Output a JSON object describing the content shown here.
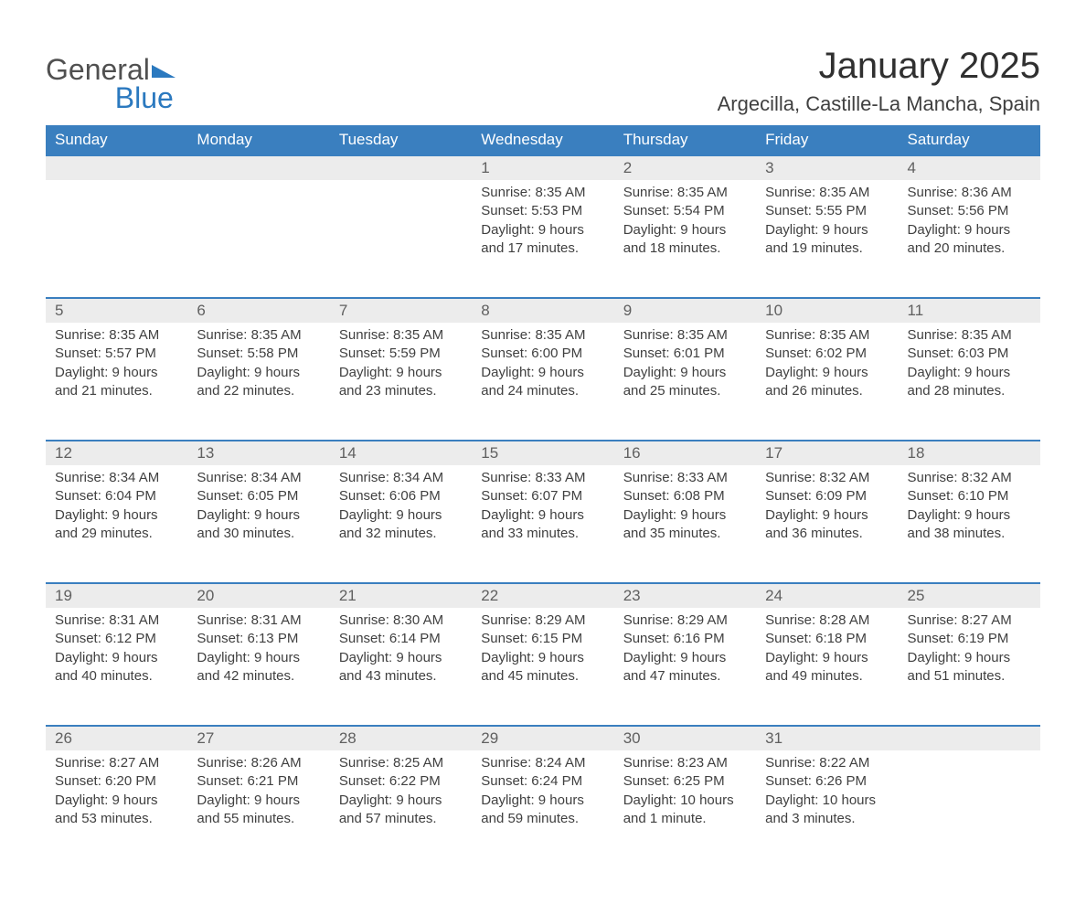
{
  "logo": {
    "general": "General",
    "blue": "Blue"
  },
  "title": "January 2025",
  "location": "Argecilla, Castille-La Mancha, Spain",
  "colors": {
    "header_bg": "#3a7fbf",
    "header_text": "#ffffff",
    "daynum_bg": "#ececec",
    "border_top": "#3a7fbf",
    "body_text": "#404040",
    "logo_blue": "#2b79bf",
    "logo_gray": "#505050"
  },
  "day_headers": [
    "Sunday",
    "Monday",
    "Tuesday",
    "Wednesday",
    "Thursday",
    "Friday",
    "Saturday"
  ],
  "weeks": [
    [
      null,
      null,
      null,
      {
        "n": "1",
        "sunrise": "Sunrise: 8:35 AM",
        "sunset": "Sunset: 5:53 PM",
        "d1": "Daylight: 9 hours",
        "d2": "and 17 minutes."
      },
      {
        "n": "2",
        "sunrise": "Sunrise: 8:35 AM",
        "sunset": "Sunset: 5:54 PM",
        "d1": "Daylight: 9 hours",
        "d2": "and 18 minutes."
      },
      {
        "n": "3",
        "sunrise": "Sunrise: 8:35 AM",
        "sunset": "Sunset: 5:55 PM",
        "d1": "Daylight: 9 hours",
        "d2": "and 19 minutes."
      },
      {
        "n": "4",
        "sunrise": "Sunrise: 8:36 AM",
        "sunset": "Sunset: 5:56 PM",
        "d1": "Daylight: 9 hours",
        "d2": "and 20 minutes."
      }
    ],
    [
      {
        "n": "5",
        "sunrise": "Sunrise: 8:35 AM",
        "sunset": "Sunset: 5:57 PM",
        "d1": "Daylight: 9 hours",
        "d2": "and 21 minutes."
      },
      {
        "n": "6",
        "sunrise": "Sunrise: 8:35 AM",
        "sunset": "Sunset: 5:58 PM",
        "d1": "Daylight: 9 hours",
        "d2": "and 22 minutes."
      },
      {
        "n": "7",
        "sunrise": "Sunrise: 8:35 AM",
        "sunset": "Sunset: 5:59 PM",
        "d1": "Daylight: 9 hours",
        "d2": "and 23 minutes."
      },
      {
        "n": "8",
        "sunrise": "Sunrise: 8:35 AM",
        "sunset": "Sunset: 6:00 PM",
        "d1": "Daylight: 9 hours",
        "d2": "and 24 minutes."
      },
      {
        "n": "9",
        "sunrise": "Sunrise: 8:35 AM",
        "sunset": "Sunset: 6:01 PM",
        "d1": "Daylight: 9 hours",
        "d2": "and 25 minutes."
      },
      {
        "n": "10",
        "sunrise": "Sunrise: 8:35 AM",
        "sunset": "Sunset: 6:02 PM",
        "d1": "Daylight: 9 hours",
        "d2": "and 26 minutes."
      },
      {
        "n": "11",
        "sunrise": "Sunrise: 8:35 AM",
        "sunset": "Sunset: 6:03 PM",
        "d1": "Daylight: 9 hours",
        "d2": "and 28 minutes."
      }
    ],
    [
      {
        "n": "12",
        "sunrise": "Sunrise: 8:34 AM",
        "sunset": "Sunset: 6:04 PM",
        "d1": "Daylight: 9 hours",
        "d2": "and 29 minutes."
      },
      {
        "n": "13",
        "sunrise": "Sunrise: 8:34 AM",
        "sunset": "Sunset: 6:05 PM",
        "d1": "Daylight: 9 hours",
        "d2": "and 30 minutes."
      },
      {
        "n": "14",
        "sunrise": "Sunrise: 8:34 AM",
        "sunset": "Sunset: 6:06 PM",
        "d1": "Daylight: 9 hours",
        "d2": "and 32 minutes."
      },
      {
        "n": "15",
        "sunrise": "Sunrise: 8:33 AM",
        "sunset": "Sunset: 6:07 PM",
        "d1": "Daylight: 9 hours",
        "d2": "and 33 minutes."
      },
      {
        "n": "16",
        "sunrise": "Sunrise: 8:33 AM",
        "sunset": "Sunset: 6:08 PM",
        "d1": "Daylight: 9 hours",
        "d2": "and 35 minutes."
      },
      {
        "n": "17",
        "sunrise": "Sunrise: 8:32 AM",
        "sunset": "Sunset: 6:09 PM",
        "d1": "Daylight: 9 hours",
        "d2": "and 36 minutes."
      },
      {
        "n": "18",
        "sunrise": "Sunrise: 8:32 AM",
        "sunset": "Sunset: 6:10 PM",
        "d1": "Daylight: 9 hours",
        "d2": "and 38 minutes."
      }
    ],
    [
      {
        "n": "19",
        "sunrise": "Sunrise: 8:31 AM",
        "sunset": "Sunset: 6:12 PM",
        "d1": "Daylight: 9 hours",
        "d2": "and 40 minutes."
      },
      {
        "n": "20",
        "sunrise": "Sunrise: 8:31 AM",
        "sunset": "Sunset: 6:13 PM",
        "d1": "Daylight: 9 hours",
        "d2": "and 42 minutes."
      },
      {
        "n": "21",
        "sunrise": "Sunrise: 8:30 AM",
        "sunset": "Sunset: 6:14 PM",
        "d1": "Daylight: 9 hours",
        "d2": "and 43 minutes."
      },
      {
        "n": "22",
        "sunrise": "Sunrise: 8:29 AM",
        "sunset": "Sunset: 6:15 PM",
        "d1": "Daylight: 9 hours",
        "d2": "and 45 minutes."
      },
      {
        "n": "23",
        "sunrise": "Sunrise: 8:29 AM",
        "sunset": "Sunset: 6:16 PM",
        "d1": "Daylight: 9 hours",
        "d2": "and 47 minutes."
      },
      {
        "n": "24",
        "sunrise": "Sunrise: 8:28 AM",
        "sunset": "Sunset: 6:18 PM",
        "d1": "Daylight: 9 hours",
        "d2": "and 49 minutes."
      },
      {
        "n": "25",
        "sunrise": "Sunrise: 8:27 AM",
        "sunset": "Sunset: 6:19 PM",
        "d1": "Daylight: 9 hours",
        "d2": "and 51 minutes."
      }
    ],
    [
      {
        "n": "26",
        "sunrise": "Sunrise: 8:27 AM",
        "sunset": "Sunset: 6:20 PM",
        "d1": "Daylight: 9 hours",
        "d2": "and 53 minutes."
      },
      {
        "n": "27",
        "sunrise": "Sunrise: 8:26 AM",
        "sunset": "Sunset: 6:21 PM",
        "d1": "Daylight: 9 hours",
        "d2": "and 55 minutes."
      },
      {
        "n": "28",
        "sunrise": "Sunrise: 8:25 AM",
        "sunset": "Sunset: 6:22 PM",
        "d1": "Daylight: 9 hours",
        "d2": "and 57 minutes."
      },
      {
        "n": "29",
        "sunrise": "Sunrise: 8:24 AM",
        "sunset": "Sunset: 6:24 PM",
        "d1": "Daylight: 9 hours",
        "d2": "and 59 minutes."
      },
      {
        "n": "30",
        "sunrise": "Sunrise: 8:23 AM",
        "sunset": "Sunset: 6:25 PM",
        "d1": "Daylight: 10 hours",
        "d2": "and 1 minute."
      },
      {
        "n": "31",
        "sunrise": "Sunrise: 8:22 AM",
        "sunset": "Sunset: 6:26 PM",
        "d1": "Daylight: 10 hours",
        "d2": "and 3 minutes."
      },
      null
    ]
  ]
}
